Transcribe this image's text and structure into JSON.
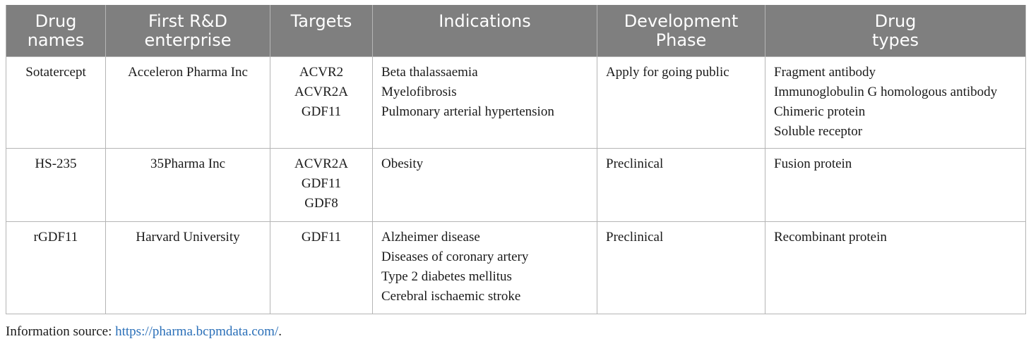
{
  "table": {
    "headers": [
      [
        "Drug",
        "names"
      ],
      [
        "First R&D",
        "enterprise"
      ],
      [
        "Targets"
      ],
      [
        "Indications"
      ],
      [
        "Development",
        "Phase"
      ],
      [
        "Drug",
        "types"
      ]
    ],
    "rows": [
      {
        "drug_name": "Sotatercept",
        "enterprise": "Acceleron Pharma Inc",
        "targets": [
          "ACVR2",
          "ACVR2A",
          "GDF11"
        ],
        "indications": [
          "Beta thalassaemia",
          "Myelofibrosis",
          "Pulmonary arterial hypertension"
        ],
        "phase": "Apply for going public",
        "drug_types": [
          "Fragment antibody",
          "Immunoglobulin G homologous antibody",
          "Chimeric protein",
          "Soluble receptor"
        ]
      },
      {
        "drug_name": "HS-235",
        "enterprise": "35Pharma Inc",
        "targets": [
          "ACVR2A",
          "GDF11",
          "GDF8"
        ],
        "indications": [
          "Obesity"
        ],
        "phase": "Preclinical",
        "drug_types": [
          "Fusion protein"
        ]
      },
      {
        "drug_name": "rGDF11",
        "enterprise": "Harvard University",
        "targets": [
          "GDF11"
        ],
        "indications": [
          "Alzheimer disease",
          "Diseases of coronary artery",
          "Type 2 diabetes mellitus",
          "Cerebral ischaemic stroke"
        ],
        "phase": "Preclinical",
        "drug_types": [
          "Recombinant protein"
        ]
      }
    ]
  },
  "footnote": {
    "label": "Information source: ",
    "link_text": "https://pharma.bcpmdata.com/",
    "trailing": "."
  },
  "colors": {
    "header_bg": "#7f7f7f",
    "header_text": "#ffffff",
    "border": "#b5b5b5",
    "link": "#2a6fb8"
  }
}
